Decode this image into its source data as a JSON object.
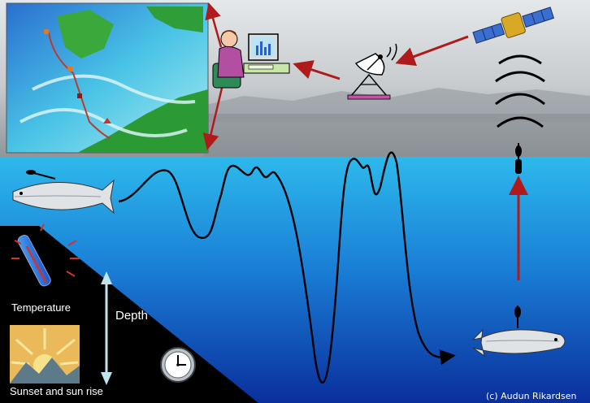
{
  "labels": {
    "temperature": "Temperature",
    "depth": "Depth",
    "sunset": "Sunset and sun rise",
    "credit": "(c) Audun Rikardsen"
  },
  "colors": {
    "sea_top": "#29b6ea",
    "sea_bottom": "#0a2f9c",
    "sky": "#c8cccf",
    "arrow": "#b01a1a",
    "panel": "#000000"
  },
  "icons": [
    "map-inset",
    "person-at-computer-icon",
    "satellite-dish-icon",
    "satellite-icon",
    "fish-icon",
    "fish-tag-icon",
    "thermometer-icon",
    "sunrise-icon",
    "clock-icon"
  ]
}
